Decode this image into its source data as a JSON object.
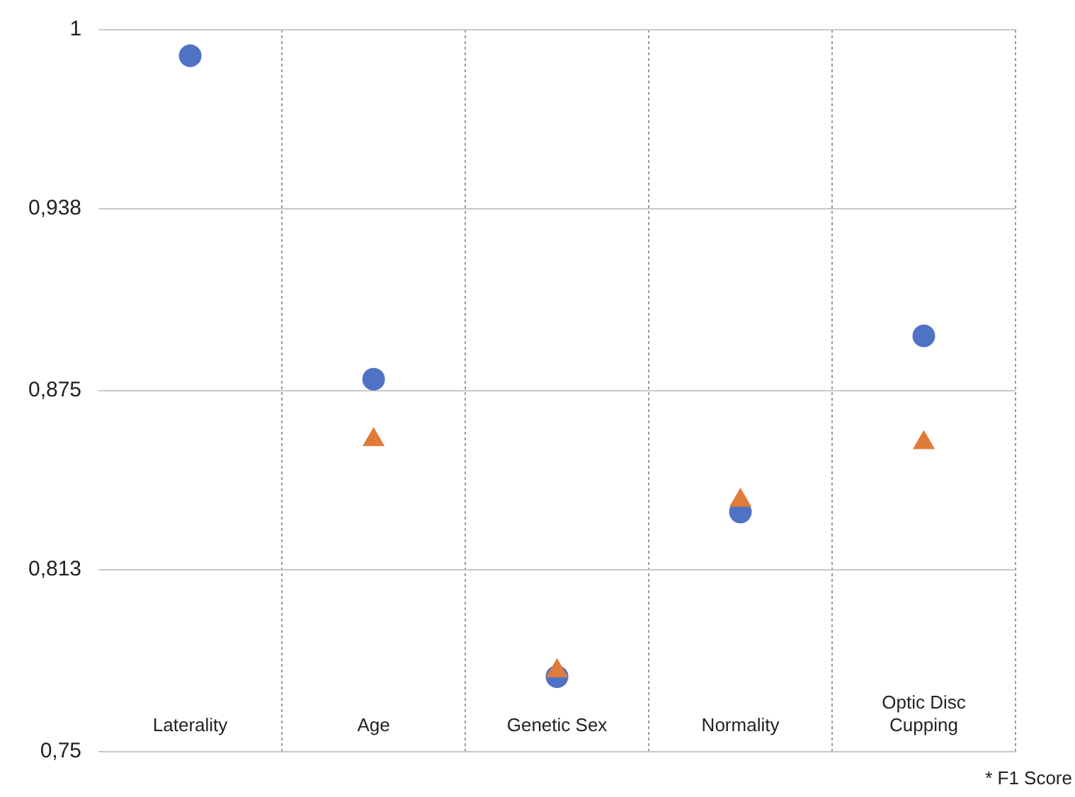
{
  "chart_data": {
    "type": "scatter",
    "categories": [
      "Laterality",
      "Age",
      "Genetic Sex",
      "Normality",
      "Optic Disc Cupping"
    ],
    "series": [
      {
        "color": "#4f72c4",
        "marker": "circle",
        "values": [
          0.991,
          0.879,
          0.776,
          0.833,
          0.894
        ]
      },
      {
        "color": "#e07b39",
        "marker": "triangle",
        "values": [
          null,
          0.858,
          0.778,
          0.837,
          0.857
        ]
      }
    ],
    "ylim": [
      0.75,
      1
    ],
    "yticks": [
      {
        "value": 0.75,
        "label": "0,75"
      },
      {
        "value": 0.813,
        "label": "0,813"
      },
      {
        "value": 0.875,
        "label": "0,875"
      },
      {
        "value": 0.938,
        "label": "0,938"
      },
      {
        "value": 1,
        "label": "1"
      }
    ],
    "grid": true,
    "annotations": [
      "* F1 Score"
    ]
  }
}
